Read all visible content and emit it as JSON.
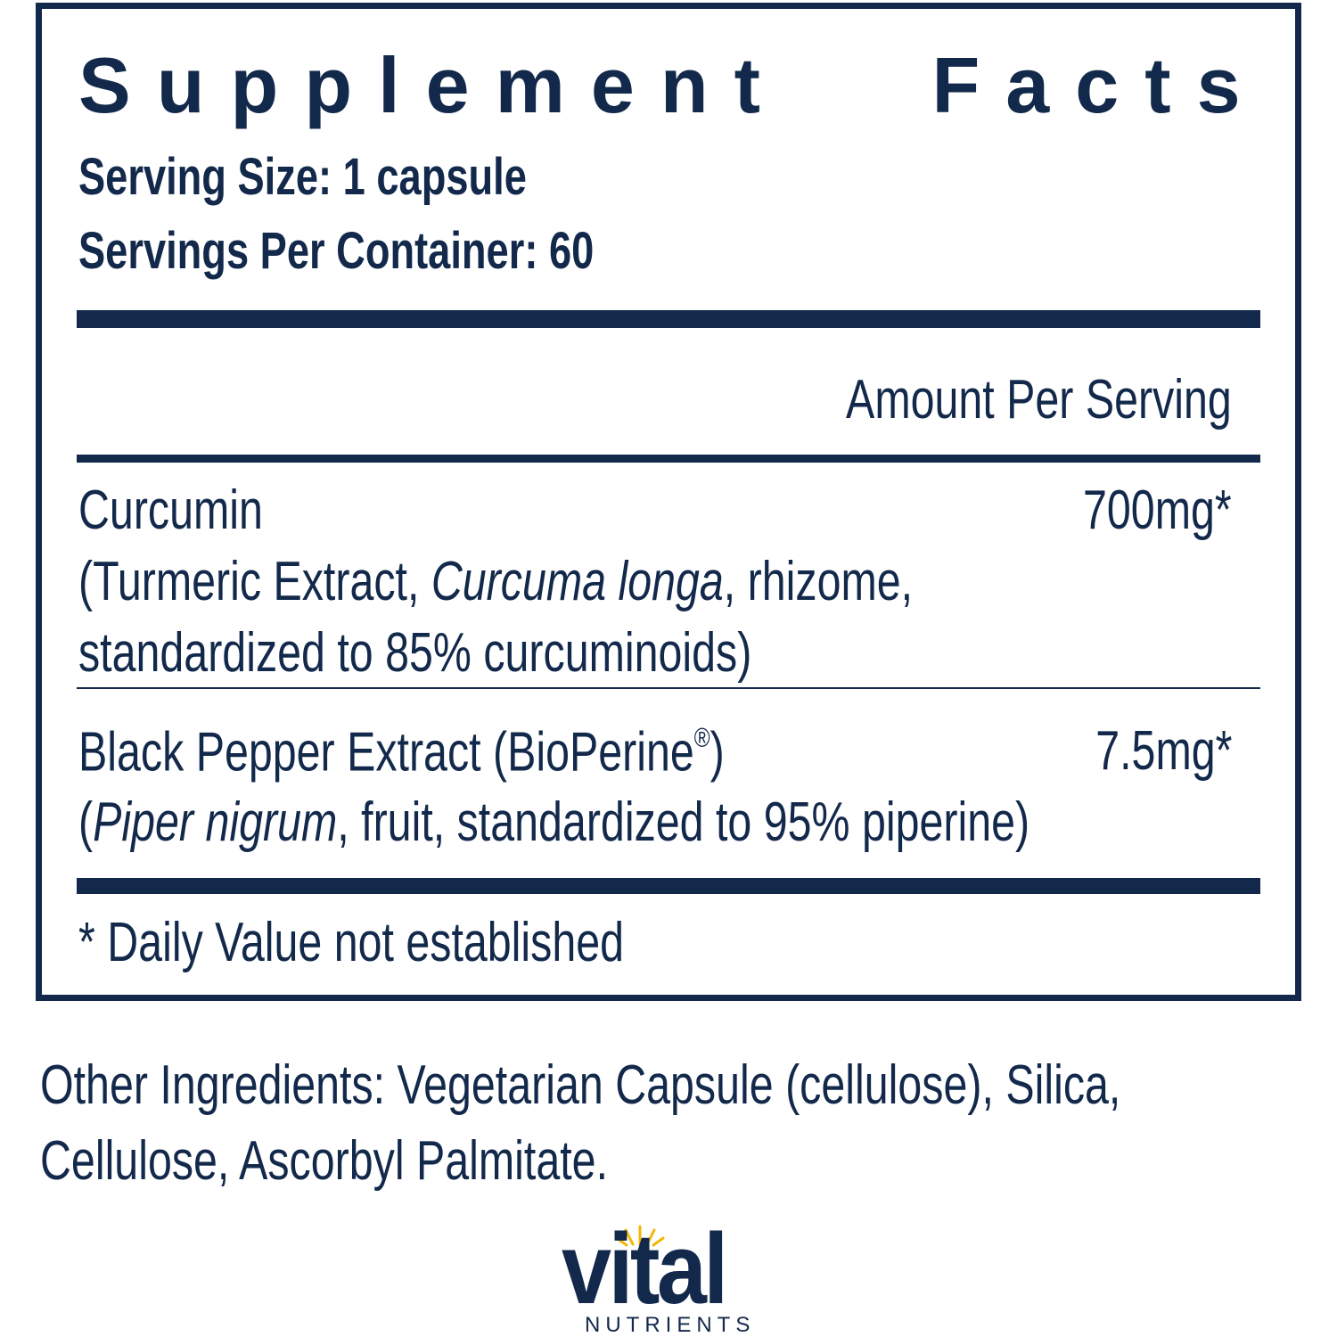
{
  "header": {
    "title": "Supplement Facts",
    "serving_size": "Serving Size: 1 capsule",
    "servings_per_container": "Servings Per Container: 60"
  },
  "column_header": "Amount Per Serving",
  "ingredients": [
    {
      "name": [
        "Curcumin"
      ],
      "amount": "700mg*",
      "description_lines": [
        [
          "(Turmeric Extract, ",
          "Curcuma longa",
          ", rhizome,"
        ],
        [
          "standardized to 85% curcuminoids)"
        ]
      ]
    },
    {
      "name": [
        "Black Pepper Extract (BioPerine",
        "®",
        ")"
      ],
      "amount": "7.5mg*",
      "description_lines": [
        [
          "(",
          "Piper nigrum",
          ", fruit, standardized to 95% piperine)"
        ]
      ]
    }
  ],
  "footnote": "* Daily Value not established",
  "other_ingredients": [
    "Other Ingredients: Vegetarian Capsule (cellulose), Silica,",
    "Cellulose, Ascorbyl Palmitate."
  ],
  "logo": {
    "name": "vital",
    "tagline": "NUTRIENTS"
  }
}
